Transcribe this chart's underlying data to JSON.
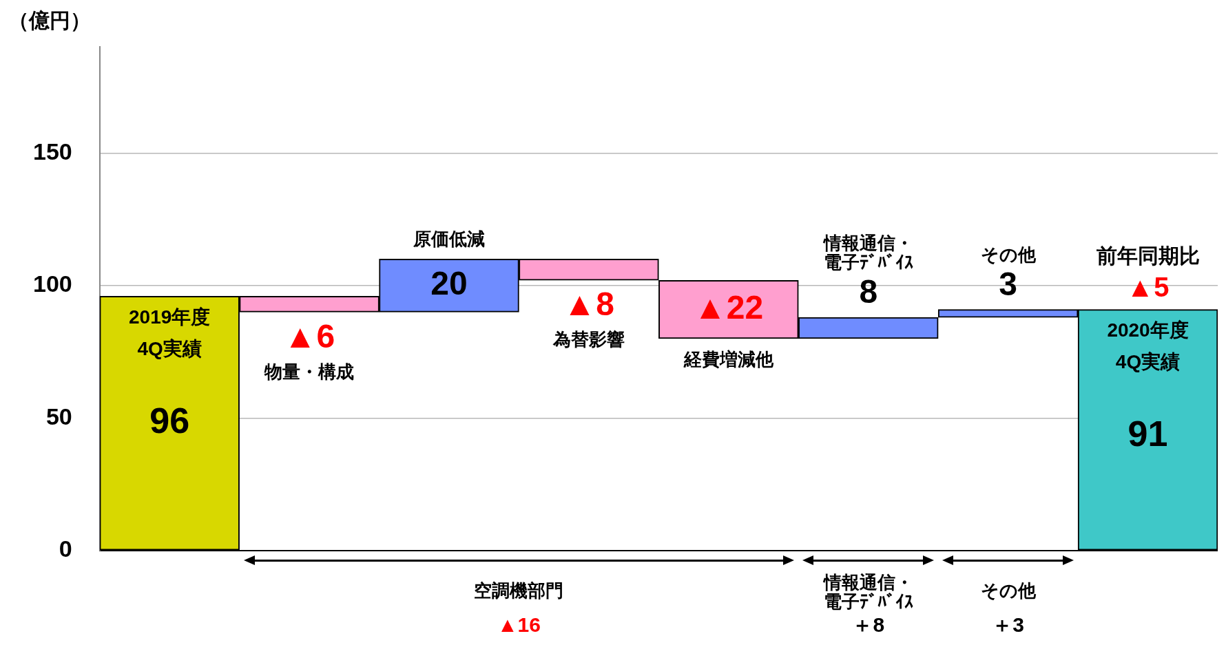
{
  "chart_data": {
    "type": "bar",
    "ylabel": "（億円）",
    "categories": [
      "2019年度 4Q実績",
      "物量・構成",
      "原価低減",
      "為替影響",
      "経費増減他",
      "情報通信・電子ﾃﾞﾊﾞｲｽ",
      "その他",
      "2020年度 4Q実績"
    ],
    "values": [
      96,
      -6,
      20,
      -8,
      -22,
      8,
      3,
      91
    ],
    "base": [
      null,
      96,
      90,
      110,
      102,
      80,
      88,
      null
    ],
    "colors": [
      "#d8d800",
      "#ff9fcf",
      "#6f8cff",
      "#ff9fcf",
      "#ff9fcf",
      "#6f8cff",
      "#6f8cff",
      "#3fc8c8"
    ],
    "value_labels": [
      "96",
      "▲6",
      "20",
      "▲8",
      "▲22",
      "8",
      "3",
      "91"
    ],
    "ylim": [
      0,
      190
    ],
    "yticks": [
      0,
      50,
      100,
      150
    ],
    "grid": "y",
    "tick_labels": "y",
    "annotations": [
      {
        "text": "前年同期比 ▲5",
        "x": "2020年度 4Q実績",
        "y": 91
      },
      "空調機部門",
      "▲16",
      "情報通信・電子ﾃﾞﾊﾞｲｽ",
      "＋8",
      "その他",
      "＋3"
    ]
  }
}
